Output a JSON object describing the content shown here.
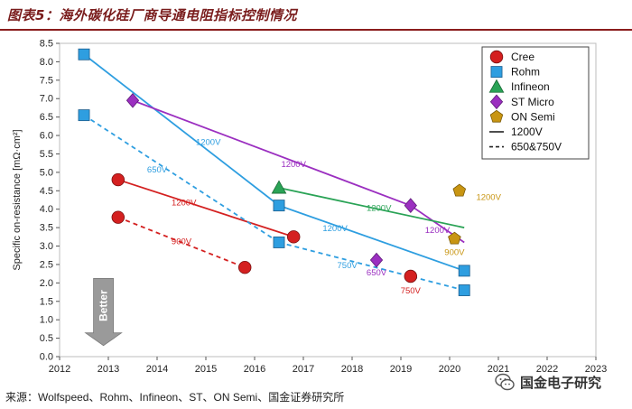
{
  "header": {
    "title": "图表5：海外碳化硅厂商导通电阻指标控制情况"
  },
  "footer": {
    "source": "来源：Wolfspeed、Rohm、Infineon、ST、ON Semi、国金证券研究所",
    "logo_text": "国金电子研究"
  },
  "chart_data": {
    "type": "scatter",
    "ylabel": "Specific on-resistance [mΩ·cm²]",
    "xlim": [
      2012,
      2023
    ],
    "ylim": [
      0,
      8.5
    ],
    "x_ticks": [
      "2012",
      "2013",
      "2014",
      "2015",
      "2016",
      "2017",
      "2018",
      "2019",
      "2020",
      "2021",
      "2022",
      "2023"
    ],
    "y_ticks": [
      "0.0",
      "0.5",
      "1.0",
      "1.5",
      "2.0",
      "2.5",
      "3.0",
      "3.5",
      "4.0",
      "4.5",
      "5.0",
      "5.5",
      "6.0",
      "6.5",
      "7.0",
      "7.5",
      "8.0",
      "8.5"
    ],
    "arrow_label": "Better",
    "legend_position": "top-right",
    "series": [
      {
        "name": "Cree",
        "marker": "circle",
        "color": "#d42020",
        "points": [
          [
            2013.2,
            4.8
          ],
          [
            2013.2,
            3.78
          ],
          [
            2015.8,
            2.42
          ],
          [
            2016.8,
            3.25
          ],
          [
            2019.2,
            2.18
          ]
        ]
      },
      {
        "name": "Rohm",
        "marker": "square",
        "color": "#2e9ee0",
        "points": [
          [
            2012.5,
            8.2
          ],
          [
            2012.5,
            6.55
          ],
          [
            2016.5,
            4.1
          ],
          [
            2016.5,
            3.1
          ],
          [
            2020.3,
            2.33
          ],
          [
            2020.3,
            1.8
          ]
        ]
      },
      {
        "name": "Infineon",
        "marker": "triangle",
        "color": "#2aa356",
        "points": [
          [
            2016.5,
            4.58
          ]
        ]
      },
      {
        "name": "ST Micro",
        "marker": "diamond",
        "color": "#9b2fc0",
        "points": [
          [
            2013.5,
            6.95
          ],
          [
            2018.5,
            2.62
          ],
          [
            2019.2,
            4.1
          ]
        ]
      },
      {
        "name": "ON Semi",
        "marker": "pentagon",
        "color": "#c89512",
        "points": [
          [
            2020.2,
            4.5
          ],
          [
            2020.1,
            3.2
          ]
        ]
      }
    ],
    "lines": [
      {
        "series": "Cree",
        "style": "solid",
        "label": "1200V",
        "points": [
          [
            2013.2,
            4.8
          ],
          [
            2016.8,
            3.25
          ]
        ]
      },
      {
        "series": "Cree",
        "style": "dashed",
        "label": "900V",
        "points": [
          [
            2013.2,
            3.78
          ],
          [
            2015.8,
            2.42
          ]
        ]
      },
      {
        "series": "Rohm",
        "style": "solid",
        "label": "1200V",
        "points": [
          [
            2012.5,
            8.2
          ],
          [
            2016.5,
            4.1
          ]
        ]
      },
      {
        "series": "Rohm",
        "style": "solid",
        "label": "1200V",
        "points": [
          [
            2016.5,
            4.1
          ],
          [
            2020.3,
            2.33
          ]
        ]
      },
      {
        "series": "Rohm",
        "style": "dashed",
        "label": "650V",
        "points": [
          [
            2012.5,
            6.55
          ],
          [
            2016.5,
            3.1
          ]
        ]
      },
      {
        "series": "Rohm",
        "style": "dashed",
        "label": "750V",
        "points": [
          [
            2016.5,
            3.1
          ],
          [
            2020.3,
            1.8
          ]
        ]
      },
      {
        "series": "ST Micro",
        "style": "solid",
        "label": "1200V",
        "points": [
          [
            2013.5,
            6.95
          ],
          [
            2019.2,
            4.1
          ],
          [
            2020.3,
            3.1
          ]
        ]
      },
      {
        "series": "Infineon",
        "style": "solid",
        "label": "1200V",
        "points": [
          [
            2016.5,
            4.58
          ],
          [
            2020.3,
            3.5
          ]
        ]
      }
    ],
    "annotations": [
      {
        "text": "1200V",
        "x": 2015.05,
        "y": 5.75,
        "color": "#2e9ee0"
      },
      {
        "text": "650V",
        "x": 2014.0,
        "y": 5.0,
        "color": "#2e9ee0"
      },
      {
        "text": "1200V",
        "x": 2016.8,
        "y": 5.15,
        "color": "#9b2fc0"
      },
      {
        "text": "1200V",
        "x": 2014.55,
        "y": 4.1,
        "color": "#d42020"
      },
      {
        "text": "900V",
        "x": 2014.5,
        "y": 3.05,
        "color": "#d42020"
      },
      {
        "text": "1200V",
        "x": 2018.55,
        "y": 3.95,
        "color": "#2aa356"
      },
      {
        "text": "1200V",
        "x": 2017.65,
        "y": 3.4,
        "color": "#2e9ee0"
      },
      {
        "text": "750V",
        "x": 2017.9,
        "y": 2.4,
        "color": "#2e9ee0"
      },
      {
        "text": "650V",
        "x": 2018.5,
        "y": 2.2,
        "color": "#9b2fc0"
      },
      {
        "text": "750V",
        "x": 2019.2,
        "y": 1.72,
        "color": "#d42020"
      },
      {
        "text": "1200V",
        "x": 2019.75,
        "y": 3.35,
        "color": "#9b2fc0"
      },
      {
        "text": "900V",
        "x": 2020.1,
        "y": 2.75,
        "color": "#c89512"
      },
      {
        "text": "1200V",
        "x": 2020.8,
        "y": 4.25,
        "color": "#c89512"
      }
    ],
    "legend": [
      {
        "label": "Cree",
        "marker": "circle",
        "color": "#d42020"
      },
      {
        "label": "Rohm",
        "marker": "square",
        "color": "#2e9ee0"
      },
      {
        "label": "Infineon",
        "marker": "triangle",
        "color": "#2aa356"
      },
      {
        "label": "ST Micro",
        "marker": "diamond",
        "color": "#9b2fc0"
      },
      {
        "label": "ON Semi",
        "marker": "pentagon",
        "color": "#c89512"
      },
      {
        "label": "1200V",
        "marker": "solid-line",
        "color": "#222222"
      },
      {
        "label": "650&750V",
        "marker": "dashed-line",
        "color": "#222222"
      }
    ]
  }
}
